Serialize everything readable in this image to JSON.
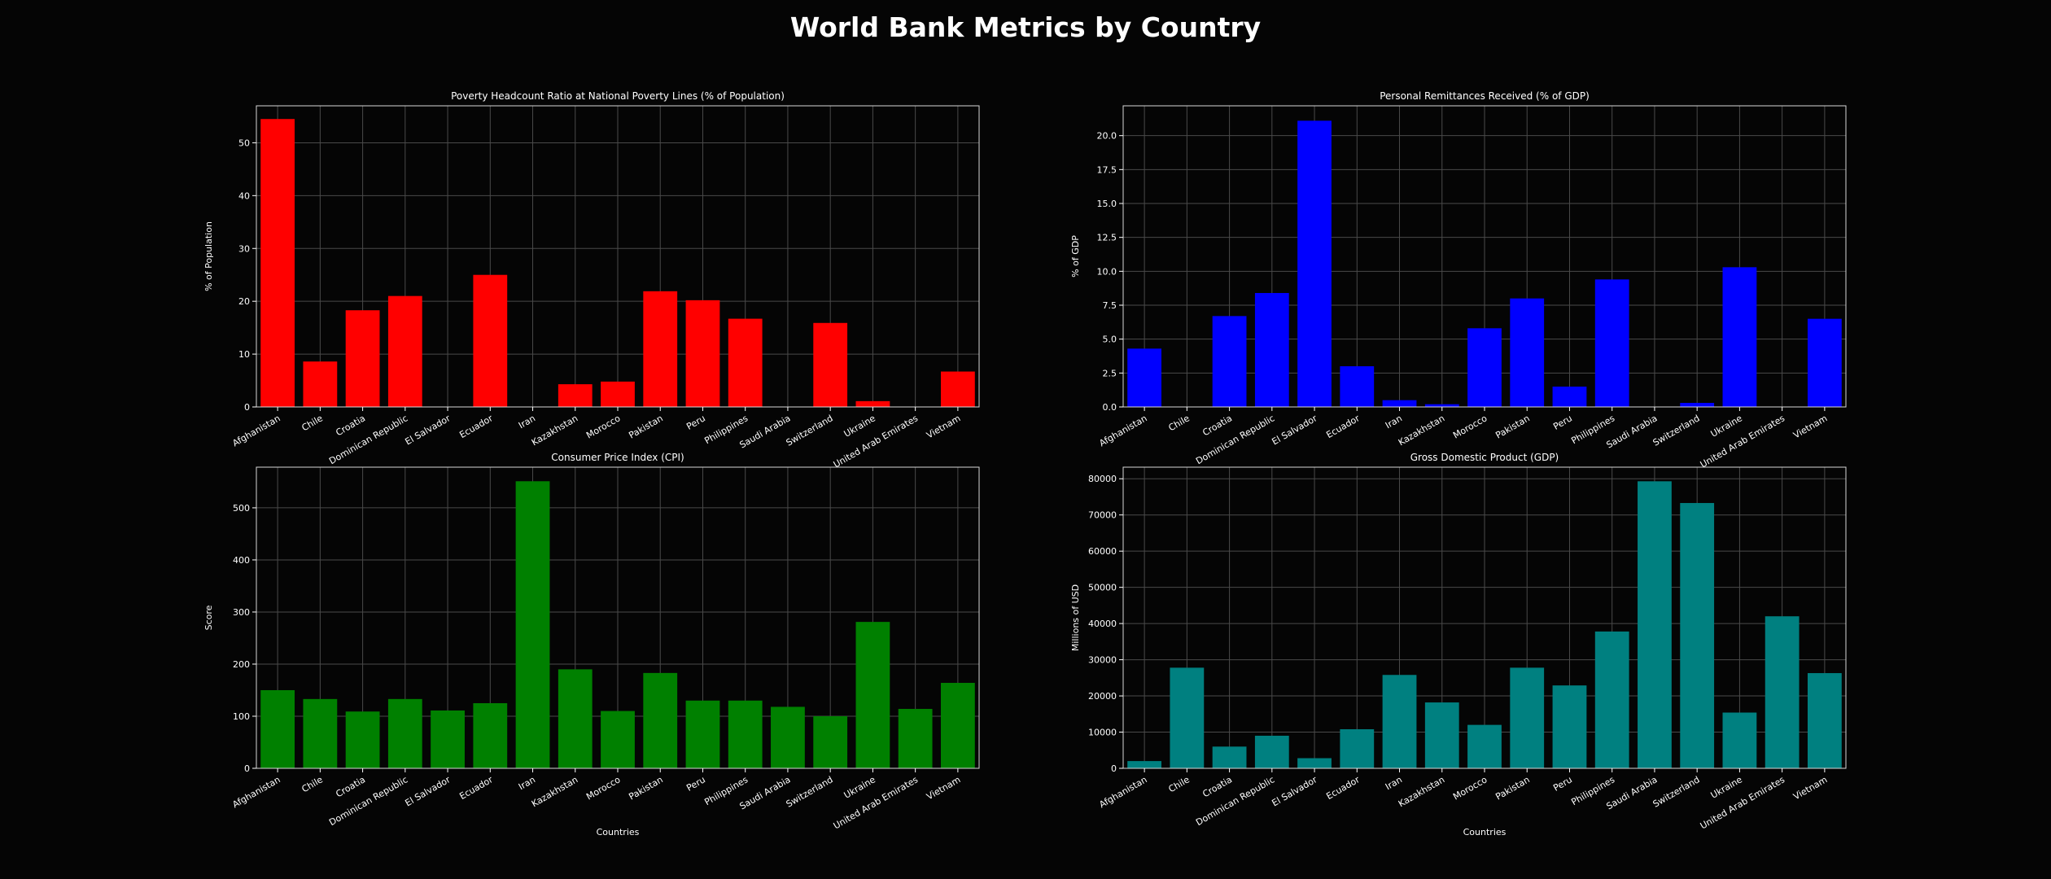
{
  "page": {
    "title": "World Bank Metrics by Country"
  },
  "chart_data": [
    {
      "type": "bar",
      "title": "Poverty Headcount Ratio at National Poverty Lines (% of Population)",
      "xlabel": "",
      "ylabel": "% of Population",
      "color": "#ff0000",
      "ylim": [
        0,
        57
      ],
      "yticks": [
        0,
        10,
        20,
        30,
        40,
        50
      ],
      "ytick_labels": [
        "0",
        "10",
        "20",
        "30",
        "40",
        "50"
      ],
      "grid": true,
      "categories": [
        "Afghanistan",
        "Chile",
        "Croatia",
        "Dominican Republic",
        "El Salvador",
        "Ecuador",
        "Iran",
        "Kazakhstan",
        "Morocco",
        "Pakistan",
        "Peru",
        "Philippines",
        "Saudi Arabia",
        "Switzerland",
        "Ukraine",
        "United Arab Emirates",
        "Vietnam"
      ],
      "values": [
        54.5,
        8.6,
        18.3,
        21.0,
        null,
        25.0,
        null,
        4.3,
        4.8,
        21.9,
        20.2,
        16.7,
        null,
        15.9,
        1.1,
        null,
        6.7
      ]
    },
    {
      "type": "bar",
      "title": "Personal Remittances Received (% of GDP)",
      "xlabel": "",
      "ylabel": "% of GDP",
      "color": "#0000ff",
      "ylim": [
        0,
        22.2
      ],
      "yticks": [
        0,
        2.5,
        5,
        7.5,
        10,
        12.5,
        15,
        17.5,
        20
      ],
      "ytick_labels": [
        "0.0",
        "2.5",
        "5.0",
        "7.5",
        "10.0",
        "12.5",
        "15.0",
        "17.5",
        "20.0"
      ],
      "grid": true,
      "categories": [
        "Afghanistan",
        "Chile",
        "Croatia",
        "Dominican Republic",
        "El Salvador",
        "Ecuador",
        "Iran",
        "Kazakhstan",
        "Morocco",
        "Pakistan",
        "Peru",
        "Philippines",
        "Saudi Arabia",
        "Switzerland",
        "Ukraine",
        "United Arab Emirates",
        "Vietnam"
      ],
      "values": [
        4.3,
        null,
        6.7,
        8.4,
        21.1,
        3.0,
        0.5,
        0.2,
        5.8,
        8.0,
        1.5,
        9.4,
        null,
        0.3,
        10.3,
        null,
        6.5
      ]
    },
    {
      "type": "bar",
      "title": "Consumer Price Index (CPI)",
      "xlabel": "Countries",
      "ylabel": "Score",
      "color": "#008000",
      "ylim": [
        0,
        578
      ],
      "yticks": [
        0,
        100,
        200,
        300,
        400,
        500
      ],
      "ytick_labels": [
        "0",
        "100",
        "200",
        "300",
        "400",
        "500"
      ],
      "grid": true,
      "categories": [
        "Afghanistan",
        "Chile",
        "Croatia",
        "Dominican Republic",
        "El Salvador",
        "Ecuador",
        "Iran",
        "Kazakhstan",
        "Morocco",
        "Pakistan",
        "Peru",
        "Philippines",
        "Saudi Arabia",
        "Switzerland",
        "Ukraine",
        "United Arab Emirates",
        "Vietnam"
      ],
      "values": [
        150,
        133,
        109,
        133,
        111,
        125,
        551,
        190,
        110,
        183,
        130,
        130,
        118,
        100,
        281,
        114,
        164
      ]
    },
    {
      "type": "bar",
      "title": "Gross Domestic Product (GDP)",
      "xlabel": "Countries",
      "ylabel": "Millions of USD",
      "color": "#008080",
      "ylim": [
        0,
        83200
      ],
      "yticks": [
        0,
        10000,
        20000,
        30000,
        40000,
        50000,
        60000,
        70000,
        80000
      ],
      "ytick_labels": [
        "0",
        "10000",
        "20000",
        "30000",
        "40000",
        "50000",
        "60000",
        "70000",
        "80000"
      ],
      "grid": true,
      "categories": [
        "Afghanistan",
        "Chile",
        "Croatia",
        "Dominican Republic",
        "El Salvador",
        "Ecuador",
        "Iran",
        "Kazakhstan",
        "Morocco",
        "Pakistan",
        "Peru",
        "Philippines",
        "Saudi Arabia",
        "Switzerland",
        "Ukraine",
        "United Arab Emirates",
        "Vietnam"
      ],
      "values": [
        2000,
        27800,
        6000,
        9000,
        2800,
        10800,
        25800,
        18200,
        12000,
        27800,
        22900,
        37800,
        79300,
        73300,
        15400,
        42000,
        26300
      ]
    }
  ]
}
